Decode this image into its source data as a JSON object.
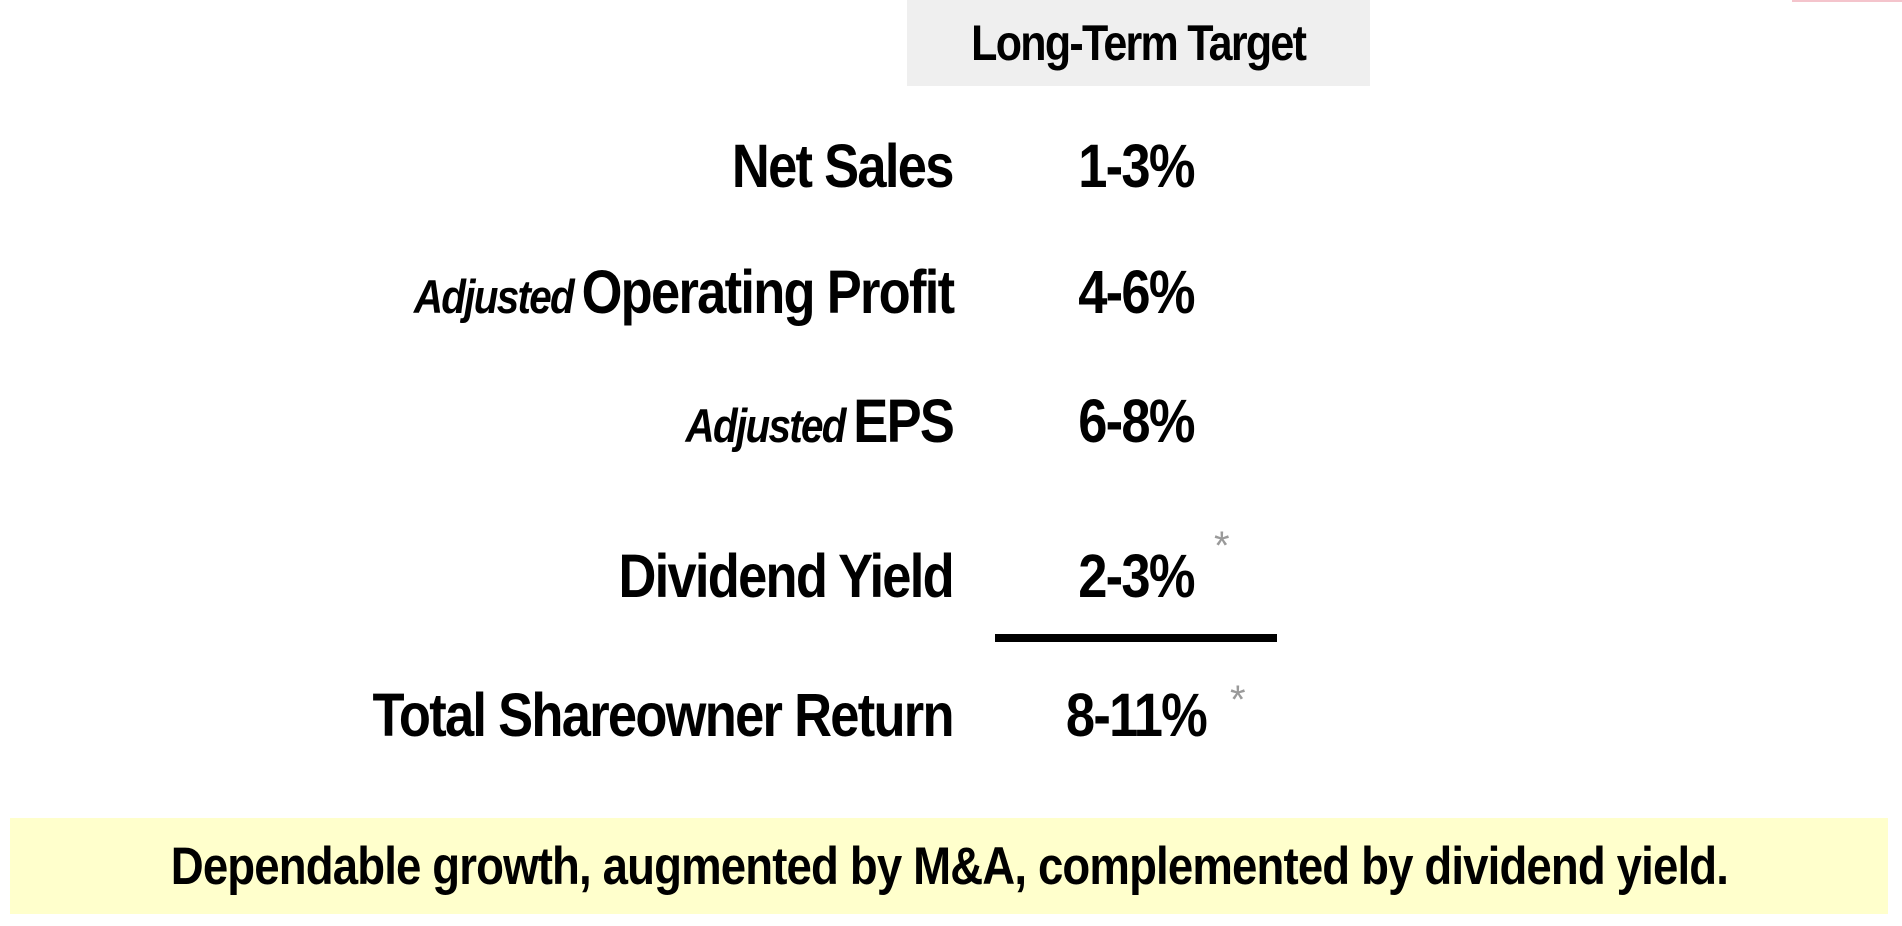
{
  "header": {
    "title": "Long-Term Target"
  },
  "rows": [
    {
      "prefix": "",
      "label": "Net Sales",
      "value": "1-3%",
      "footnote": ""
    },
    {
      "prefix": "Adjusted",
      "label": "Operating Profit",
      "value": "4-6%",
      "footnote": ""
    },
    {
      "prefix": "Adjusted",
      "label": "EPS",
      "value": "6-8%",
      "footnote": ""
    },
    {
      "prefix": "",
      "label": "Dividend Yield",
      "value": "2-3%",
      "footnote": "*"
    },
    {
      "prefix": "",
      "label": "Total Shareowner Return",
      "value": "8-11%",
      "footnote": "*"
    }
  ],
  "footer": {
    "text": "Dependable growth, augmented by M&A, complemented by dividend yield."
  },
  "colors": {
    "header_bg": "#efefef",
    "footer_bg": "#ffffcc",
    "footnote": "#9a9a9a",
    "text": "#000000"
  }
}
